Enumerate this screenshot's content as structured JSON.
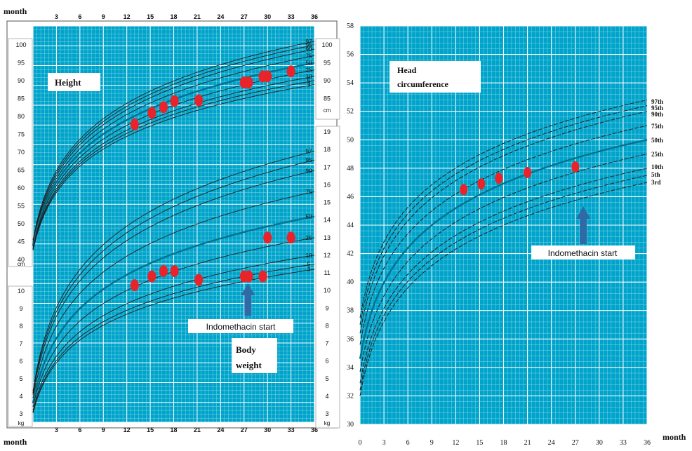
{
  "chart_data": [
    {
      "id": "left",
      "type": "line",
      "x_label_top": "month",
      "x_label_bottom": "month",
      "x_ticks": [
        3,
        6,
        9,
        12,
        15,
        18,
        21,
        24,
        27,
        30,
        33,
        36
      ],
      "xlim": [
        0,
        36
      ],
      "panels": [
        {
          "id": "height",
          "title": "Height",
          "unit": "cm",
          "ylim": [
            40,
            103
          ],
          "y_ticks_left": [
            40,
            45,
            50,
            55,
            60,
            65,
            70,
            75,
            80,
            85,
            90,
            95,
            100
          ],
          "y_ticks_right": [
            85,
            90,
            95,
            100
          ],
          "percentiles": [
            {
              "label": "97",
              "at0": 45.5,
              "at36": 101.0,
              "bold": false
            },
            {
              "label": "95",
              "at0": 45.0,
              "at36": 100.0,
              "bold": false
            },
            {
              "label": "90",
              "at0": 44.6,
              "at36": 98.8,
              "bold": false
            },
            {
              "label": "75",
              "at0": 44.2,
              "at36": 97.0,
              "bold": false
            },
            {
              "label": "50",
              "at0": 43.8,
              "at36": 95.0,
              "bold": true
            },
            {
              "label": "25",
              "at0": 43.4,
              "at36": 93.0,
              "bold": false
            },
            {
              "label": "10",
              "at0": 43.0,
              "at36": 91.2,
              "bold": false
            },
            {
              "label": "5",
              "at0": 42.8,
              "at36": 90.0,
              "bold": false
            },
            {
              "label": "3",
              "at0": 42.6,
              "at36": 88.9,
              "bold": false
            }
          ],
          "points": [
            {
              "x": 13,
              "y": 77.8
            },
            {
              "x": 15.2,
              "y": 81.0
            },
            {
              "x": 16.7,
              "y": 82.6
            },
            {
              "x": 18.1,
              "y": 84.3
            },
            {
              "x": 21.2,
              "y": 84.5
            },
            {
              "x": 27.0,
              "y": 89.5
            },
            {
              "x": 27.6,
              "y": 89.5
            },
            {
              "x": 29.4,
              "y": 91.2
            },
            {
              "x": 30.0,
              "y": 91.2
            },
            {
              "x": 33.0,
              "y": 92.6
            }
          ]
        },
        {
          "id": "weight",
          "title": "Body weight",
          "unit": "kg",
          "ylim": [
            3,
            19.5
          ],
          "y_ticks_left": [
            3,
            4,
            5,
            6,
            7,
            8,
            9,
            10
          ],
          "y_ticks_right": [
            3,
            4,
            5,
            6,
            7,
            8,
            9,
            10,
            11,
            12,
            13,
            14,
            15,
            16,
            17,
            18,
            19
          ],
          "percentiles": [
            {
              "label": "97",
              "at0": 4.3,
              "at36": 17.9,
              "bold": false
            },
            {
              "label": "95",
              "at0": 4.2,
              "at36": 17.4,
              "bold": false
            },
            {
              "label": "90",
              "at0": 4.1,
              "at36": 16.8,
              "bold": false
            },
            {
              "label": "75",
              "at0": 3.9,
              "at36": 15.6,
              "bold": false
            },
            {
              "label": "50",
              "at0": 3.6,
              "at36": 14.2,
              "bold": true
            },
            {
              "label": "25",
              "at0": 3.4,
              "at36": 13.0,
              "bold": false
            },
            {
              "label": "10",
              "at0": 3.2,
              "at36": 12.0,
              "bold": false
            },
            {
              "label": "5",
              "at0": 3.1,
              "at36": 11.5,
              "bold": false
            },
            {
              "label": "3",
              "at0": 3.05,
              "at36": 11.2,
              "bold": false
            }
          ],
          "points": [
            {
              "x": 13,
              "y": 10.3
            },
            {
              "x": 15.2,
              "y": 10.8
            },
            {
              "x": 16.7,
              "y": 11.1
            },
            {
              "x": 18.1,
              "y": 11.1
            },
            {
              "x": 21.2,
              "y": 10.6
            },
            {
              "x": 27.0,
              "y": 10.8
            },
            {
              "x": 27.6,
              "y": 10.8
            },
            {
              "x": 29.4,
              "y": 10.8
            },
            {
              "x": 30.0,
              "y": 13.0
            },
            {
              "x": 33.0,
              "y": 13.0
            }
          ]
        }
      ],
      "annotation": {
        "text": "Indomethacin start",
        "x": 27.5
      }
    },
    {
      "id": "head",
      "type": "line",
      "title": "Head circumference",
      "x_label": "month",
      "x_ticks": [
        0,
        3,
        6,
        9,
        12,
        15,
        18,
        21,
        24,
        27,
        30,
        33,
        36
      ],
      "xlim": [
        0,
        36
      ],
      "y_ticks": [
        30,
        32,
        34,
        36,
        38,
        40,
        42,
        44,
        46,
        48,
        50,
        52,
        54,
        56,
        58
      ],
      "ylim": [
        30,
        58
      ],
      "percentiles": [
        {
          "label": "97th",
          "at0": 37.5,
          "at36": 52.8,
          "bold": false
        },
        {
          "label": "95th",
          "at0": 37.0,
          "at36": 52.4,
          "bold": false
        },
        {
          "label": "90th",
          "at0": 36.4,
          "at36": 52.0,
          "bold": false
        },
        {
          "label": "75th",
          "at0": 35.6,
          "at36": 51.0,
          "bold": false
        },
        {
          "label": "50th",
          "at0": 34.6,
          "at36": 50.0,
          "bold": true
        },
        {
          "label": "25th",
          "at0": 33.7,
          "at36": 49.0,
          "bold": false
        },
        {
          "label": "10th",
          "at0": 32.9,
          "at36": 48.0,
          "bold": false
        },
        {
          "label": "5th",
          "at0": 32.4,
          "at36": 47.5,
          "bold": false
        },
        {
          "label": "3rd",
          "at0": 32.0,
          "at36": 47.0,
          "bold": false
        }
      ],
      "points": [
        {
          "x": 13.0,
          "y": 46.5
        },
        {
          "x": 15.2,
          "y": 46.9
        },
        {
          "x": 17.4,
          "y": 47.3
        },
        {
          "x": 21.0,
          "y": 47.7
        },
        {
          "x": 27.0,
          "y": 48.1
        }
      ],
      "annotation": {
        "text": "Indomethacin start",
        "x": 28.0
      }
    }
  ],
  "colors": {
    "background": "#00a3c9",
    "grid_minor": "#7fd6ea",
    "grid_major": "#ffffff",
    "curve": "#1f1f1f",
    "median": "#00718f",
    "points": "#e8242a",
    "arrow": "#2e6aa6"
  }
}
